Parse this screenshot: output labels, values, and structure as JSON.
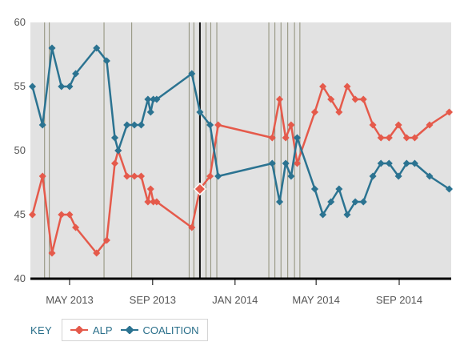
{
  "chart_data": {
    "type": "line",
    "title": "",
    "xlabel": "",
    "ylabel": "",
    "ylim": [
      40,
      60
    ],
    "y_ticks": [
      40,
      45,
      50,
      55,
      60
    ],
    "xlim": [
      "2013-03-04",
      "2014-11-17"
    ],
    "x_ticks": [
      {
        "date": "2013-05-01",
        "label": "MAY 2013"
      },
      {
        "date": "2013-09-01",
        "label": "SEP 2013"
      },
      {
        "date": "2014-01-01",
        "label": "JAN 2014"
      },
      {
        "date": "2014-05-01",
        "label": "MAY 2014"
      },
      {
        "date": "2014-09-01",
        "label": "SEP 2014"
      }
    ],
    "grid": "vertical lines at event dates",
    "legend": {
      "position": "bottom-left",
      "key_label": "KEY"
    },
    "highlight_date": "2013-11-10",
    "event_dates": [
      "2013-03-25",
      "2013-04-01",
      "2013-06-21",
      "2013-08-01",
      "2013-10-25",
      "2013-11-01",
      "2013-11-19",
      "2013-11-26",
      "2013-12-05",
      "2014-02-20",
      "2014-03-01",
      "2014-03-10",
      "2014-03-20",
      "2014-03-30",
      "2014-04-07"
    ],
    "series": [
      {
        "name": "ALP",
        "color": "#e55a4b",
        "x": [
          "2013-03-07",
          "2013-03-22",
          "2013-04-05",
          "2013-04-19",
          "2013-05-01",
          "2013-05-10",
          "2013-06-10",
          "2013-06-25",
          "2013-07-07",
          "2013-07-12",
          "2013-07-25",
          "2013-08-05",
          "2013-08-15",
          "2013-08-25",
          "2013-08-29",
          "2013-09-02",
          "2013-09-07",
          "2013-10-29",
          "2013-11-10",
          "2013-11-25",
          "2013-12-07",
          "2014-02-25",
          "2014-03-08",
          "2014-03-17",
          "2014-03-25",
          "2014-04-03",
          "2014-04-29",
          "2014-05-11",
          "2014-05-23",
          "2014-06-04",
          "2014-06-16",
          "2014-06-28",
          "2014-07-10",
          "2014-07-24",
          "2014-08-05",
          "2014-08-17",
          "2014-08-31",
          "2014-09-12",
          "2014-09-24",
          "2014-10-16",
          "2014-11-14"
        ],
        "values": [
          45,
          48,
          42,
          45,
          45,
          44,
          42,
          43,
          49,
          50,
          48,
          48,
          48,
          46,
          47,
          46,
          46,
          44,
          47,
          48,
          52,
          51,
          54,
          51,
          52,
          49,
          53,
          55,
          54,
          53,
          55,
          54,
          54,
          52,
          51,
          51,
          52,
          51,
          51,
          52,
          53
        ]
      },
      {
        "name": "COALITION",
        "color": "#2b7391",
        "x": [
          "2013-03-07",
          "2013-03-22",
          "2013-04-05",
          "2013-04-19",
          "2013-05-01",
          "2013-05-10",
          "2013-06-10",
          "2013-06-25",
          "2013-07-07",
          "2013-07-12",
          "2013-07-25",
          "2013-08-05",
          "2013-08-15",
          "2013-08-25",
          "2013-08-29",
          "2013-09-02",
          "2013-09-07",
          "2013-10-29",
          "2013-11-10",
          "2013-11-25",
          "2013-12-07",
          "2014-02-25",
          "2014-03-08",
          "2014-03-17",
          "2014-03-25",
          "2014-04-03",
          "2014-04-29",
          "2014-05-11",
          "2014-05-23",
          "2014-06-04",
          "2014-06-16",
          "2014-06-28",
          "2014-07-10",
          "2014-07-24",
          "2014-08-05",
          "2014-08-17",
          "2014-08-31",
          "2014-09-12",
          "2014-09-24",
          "2014-10-16",
          "2014-11-14"
        ],
        "values": [
          55,
          52,
          58,
          55,
          55,
          56,
          58,
          57,
          51,
          50,
          52,
          52,
          52,
          54,
          53,
          54,
          54,
          56,
          53,
          52,
          48,
          49,
          46,
          49,
          48,
          51,
          47,
          45,
          46,
          47,
          45,
          46,
          46,
          48,
          49,
          49,
          48,
          49,
          49,
          48,
          47
        ]
      }
    ]
  }
}
